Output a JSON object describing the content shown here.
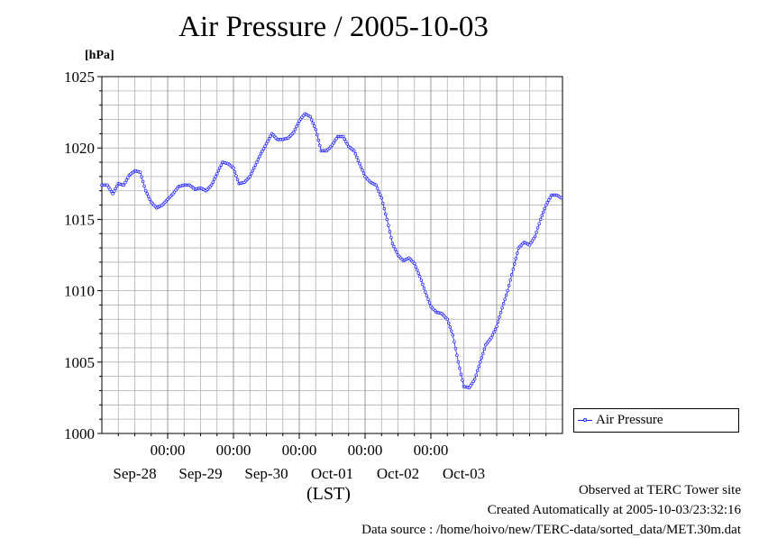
{
  "title": "Air Pressure / 2005-10-03",
  "unit_label": "[hPa]",
  "time_zone_label": "(LST)",
  "footer": {
    "observed": "Observed at TERC Tower site",
    "created": "Created Automatically at 2005-10-03/23:32:16",
    "source": "Data source : /home/hoivo/new/TERC-data/sorted_data/MET.30m.dat"
  },
  "legend": {
    "label": "Air Pressure"
  },
  "colors": {
    "series": "#1f1fff",
    "grid": "#b0b0b0",
    "axis": "#000000"
  },
  "chart_data": {
    "type": "line",
    "title": "Air Pressure / 2005-10-03",
    "ylabel": "[hPa]",
    "xlabel": "(LST)",
    "ylim": [
      1000,
      1025
    ],
    "xlim": [
      "2005-09-27 00:00",
      "2005-10-04 00:00"
    ],
    "x_tick_labels": [
      "00:00",
      "00:00",
      "00:00",
      "00:00",
      "00:00"
    ],
    "x_day_labels": [
      "Sep-28",
      "Sep-29",
      "Sep-30",
      "Oct-01",
      "Oct-02",
      "Oct-03"
    ],
    "y_ticks": [
      1000,
      1005,
      1010,
      1015,
      1020,
      1025
    ],
    "grid": true,
    "legend_position": "right",
    "series": [
      {
        "name": "Air Pressure",
        "points": [
          [
            "2005-09-27 00:00",
            1017.4
          ],
          [
            "2005-09-27 02:00",
            1017.4
          ],
          [
            "2005-09-27 04:00",
            1016.8
          ],
          [
            "2005-09-27 06:00",
            1017.5
          ],
          [
            "2005-09-27 08:00",
            1017.4
          ],
          [
            "2005-09-27 10:00",
            1018.1
          ],
          [
            "2005-09-27 12:00",
            1018.4
          ],
          [
            "2005-09-27 14:00",
            1018.3
          ],
          [
            "2005-09-27 16:00",
            1017.0
          ],
          [
            "2005-09-27 18:00",
            1016.2
          ],
          [
            "2005-09-27 20:00",
            1015.8
          ],
          [
            "2005-09-27 22:00",
            1016.0
          ],
          [
            "2005-09-28 00:00",
            1016.4
          ],
          [
            "2005-09-28 02:00",
            1016.8
          ],
          [
            "2005-09-28 04:00",
            1017.3
          ],
          [
            "2005-09-28 06:00",
            1017.4
          ],
          [
            "2005-09-28 08:00",
            1017.4
          ],
          [
            "2005-09-28 10:00",
            1017.1
          ],
          [
            "2005-09-28 12:00",
            1017.2
          ],
          [
            "2005-09-28 14:00",
            1017.0
          ],
          [
            "2005-09-28 16:00",
            1017.4
          ],
          [
            "2005-09-28 18:00",
            1018.2
          ],
          [
            "2005-09-28 20:00",
            1019.0
          ],
          [
            "2005-09-28 22:00",
            1018.9
          ],
          [
            "2005-09-29 00:00",
            1018.6
          ],
          [
            "2005-09-29 02:00",
            1017.5
          ],
          [
            "2005-09-29 04:00",
            1017.6
          ],
          [
            "2005-09-29 06:00",
            1018.0
          ],
          [
            "2005-09-29 08:00",
            1018.8
          ],
          [
            "2005-09-29 10:00",
            1019.6
          ],
          [
            "2005-09-29 12:00",
            1020.3
          ],
          [
            "2005-09-29 14:00",
            1021.0
          ],
          [
            "2005-09-29 16:00",
            1020.6
          ],
          [
            "2005-09-29 18:00",
            1020.6
          ],
          [
            "2005-09-29 20:00",
            1020.7
          ],
          [
            "2005-09-29 22:00",
            1021.1
          ],
          [
            "2005-09-30 00:00",
            1021.9
          ],
          [
            "2005-09-30 02:00",
            1022.4
          ],
          [
            "2005-09-30 04:00",
            1022.2
          ],
          [
            "2005-09-30 06:00",
            1021.3
          ],
          [
            "2005-09-30 08:00",
            1019.8
          ],
          [
            "2005-09-30 10:00",
            1019.8
          ],
          [
            "2005-09-30 12:00",
            1020.2
          ],
          [
            "2005-09-30 14:00",
            1020.8
          ],
          [
            "2005-09-30 16:00",
            1020.8
          ],
          [
            "2005-09-30 18:00",
            1020.1
          ],
          [
            "2005-09-30 20:00",
            1019.8
          ],
          [
            "2005-09-30 22:00",
            1018.9
          ],
          [
            "2005-10-01 00:00",
            1018.0
          ],
          [
            "2005-10-01 02:00",
            1017.6
          ],
          [
            "2005-10-01 04:00",
            1017.4
          ],
          [
            "2005-10-01 06:00",
            1016.5
          ],
          [
            "2005-10-01 08:00",
            1015.0
          ],
          [
            "2005-10-01 10:00",
            1013.3
          ],
          [
            "2005-10-01 12:00",
            1012.5
          ],
          [
            "2005-10-01 14:00",
            1012.1
          ],
          [
            "2005-10-01 16:00",
            1012.3
          ],
          [
            "2005-10-01 18:00",
            1011.9
          ],
          [
            "2005-10-01 20:00",
            1011.0
          ],
          [
            "2005-10-01 22:00",
            1009.9
          ],
          [
            "2005-10-02 00:00",
            1008.9
          ],
          [
            "2005-10-02 02:00",
            1008.5
          ],
          [
            "2005-10-02 04:00",
            1008.4
          ],
          [
            "2005-10-02 06:00",
            1008.0
          ],
          [
            "2005-10-02 08:00",
            1006.9
          ],
          [
            "2005-10-02 10:00",
            1005.0
          ],
          [
            "2005-10-02 12:00",
            1003.3
          ],
          [
            "2005-10-02 14:00",
            1003.2
          ],
          [
            "2005-10-02 16:00",
            1003.8
          ],
          [
            "2005-10-02 18:00",
            1005.0
          ],
          [
            "2005-10-02 20:00",
            1006.2
          ],
          [
            "2005-10-02 22:00",
            1006.7
          ],
          [
            "2005-10-03 00:00",
            1007.5
          ],
          [
            "2005-10-03 02:00",
            1008.8
          ],
          [
            "2005-10-03 04:00",
            1010.0
          ],
          [
            "2005-10-03 06:00",
            1011.5
          ],
          [
            "2005-10-03 08:00",
            1013.0
          ],
          [
            "2005-10-03 10:00",
            1013.4
          ],
          [
            "2005-10-03 12:00",
            1013.2
          ],
          [
            "2005-10-03 14:00",
            1013.8
          ],
          [
            "2005-10-03 16:00",
            1015.0
          ],
          [
            "2005-10-03 18:00",
            1016.0
          ],
          [
            "2005-10-03 20:00",
            1016.7
          ],
          [
            "2005-10-03 22:00",
            1016.7
          ],
          [
            "2005-10-03 23:30",
            1016.5
          ]
        ]
      }
    ]
  }
}
